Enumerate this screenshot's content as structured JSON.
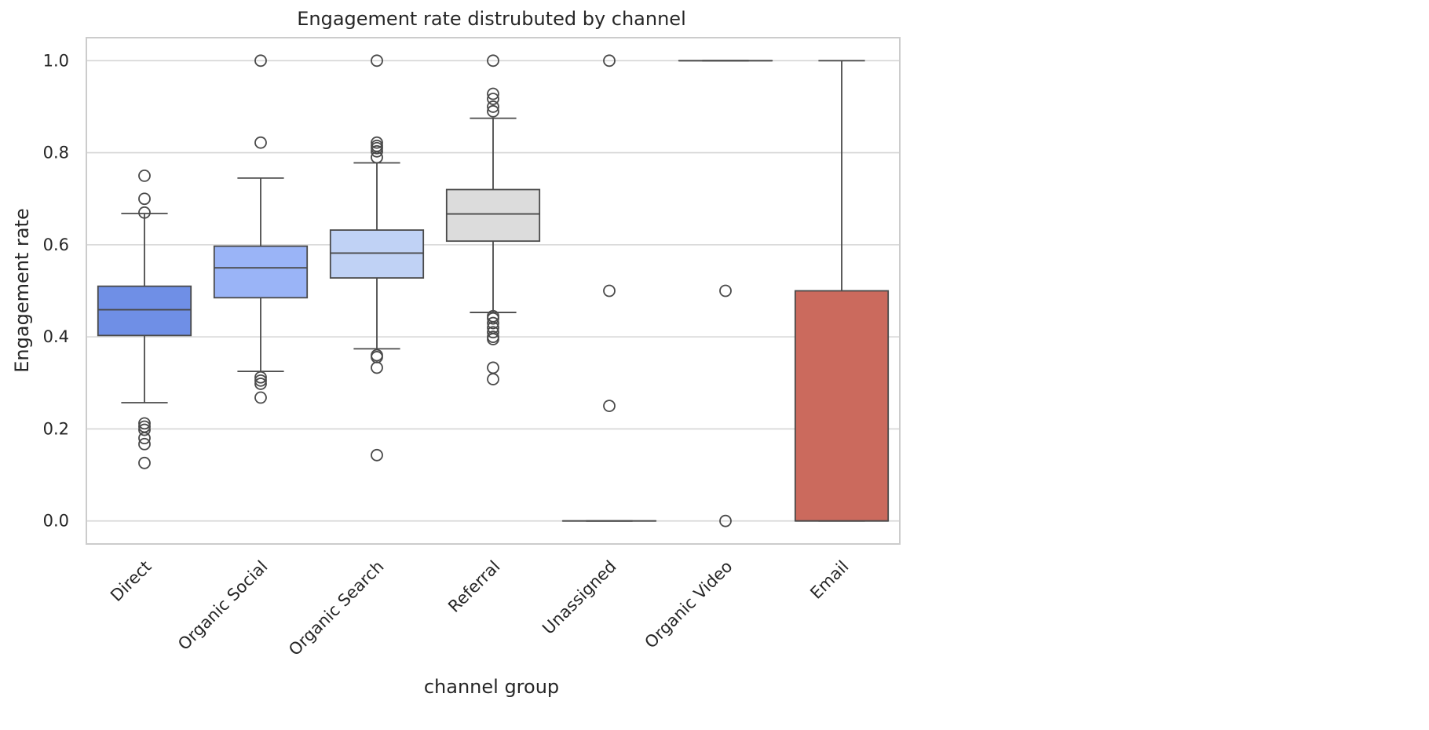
{
  "chart_data": {
    "type": "box",
    "title": "Engagement rate distrubuted by channel",
    "xlabel": "channel group",
    "ylabel": "Engagement rate",
    "ylim": [
      -0.05,
      1.05
    ],
    "yticks": [
      "0.0",
      "0.2",
      "0.4",
      "0.6",
      "0.8",
      "1.0"
    ],
    "ytick_values": [
      0.0,
      0.2,
      0.4,
      0.6,
      0.8,
      1.0
    ],
    "grid": true,
    "categories": [
      "Direct",
      "Organic Social",
      "Organic Search",
      "Referral",
      "Unassigned",
      "Organic Video",
      "Email"
    ],
    "boxes": [
      {
        "category": "Direct",
        "color": "#6f8fe6",
        "whisker_low": 0.257,
        "q1": 0.403,
        "median": 0.459,
        "q3": 0.51,
        "whisker_high": 0.668,
        "outliers": [
          0.75,
          0.7,
          0.67,
          0.212,
          0.205,
          0.198,
          0.18,
          0.167,
          0.126
        ]
      },
      {
        "category": "Organic Social",
        "color": "#9ab4f7",
        "whisker_low": 0.325,
        "q1": 0.485,
        "median": 0.55,
        "q3": 0.597,
        "whisker_high": 0.745,
        "outliers": [
          1.0,
          0.822,
          0.312,
          0.305,
          0.298,
          0.268
        ]
      },
      {
        "category": "Organic Search",
        "color": "#c0d2f5",
        "whisker_low": 0.374,
        "q1": 0.528,
        "median": 0.582,
        "q3": 0.632,
        "whisker_high": 0.778,
        "outliers": [
          1.0,
          0.822,
          0.815,
          0.81,
          0.803,
          0.79,
          0.36,
          0.356,
          0.333,
          0.143
        ]
      },
      {
        "category": "Referral",
        "color": "#dcdcdc",
        "whisker_low": 0.453,
        "q1": 0.608,
        "median": 0.667,
        "q3": 0.72,
        "whisker_high": 0.875,
        "outliers": [
          1.0,
          0.928,
          0.917,
          0.9,
          0.89,
          0.445,
          0.44,
          0.43,
          0.42,
          0.41,
          0.4,
          0.395,
          0.333,
          0.308
        ]
      },
      {
        "category": "Unassigned",
        "color": "#ecd3c6",
        "whisker_low": 0.0,
        "q1": 0.0,
        "median": 0.0,
        "q3": 0.0,
        "whisker_high": 0.0,
        "outliers": [
          1.0,
          0.5,
          0.25
        ]
      },
      {
        "category": "Organic Video",
        "color": "#f3a586",
        "whisker_low": 1.0,
        "q1": 1.0,
        "median": 1.0,
        "q3": 1.0,
        "whisker_high": 1.0,
        "outliers": [
          0.5,
          0.0
        ]
      },
      {
        "category": "Email",
        "color": "#cb6a5d",
        "whisker_low": 0.0,
        "q1": 0.0,
        "median": 0.0,
        "q3": 0.5,
        "whisker_high": 1.0,
        "outliers": []
      }
    ],
    "colors": {
      "grid": "#d5d5d5",
      "frame": "#cccccc",
      "line": "#4a4a4a"
    }
  }
}
